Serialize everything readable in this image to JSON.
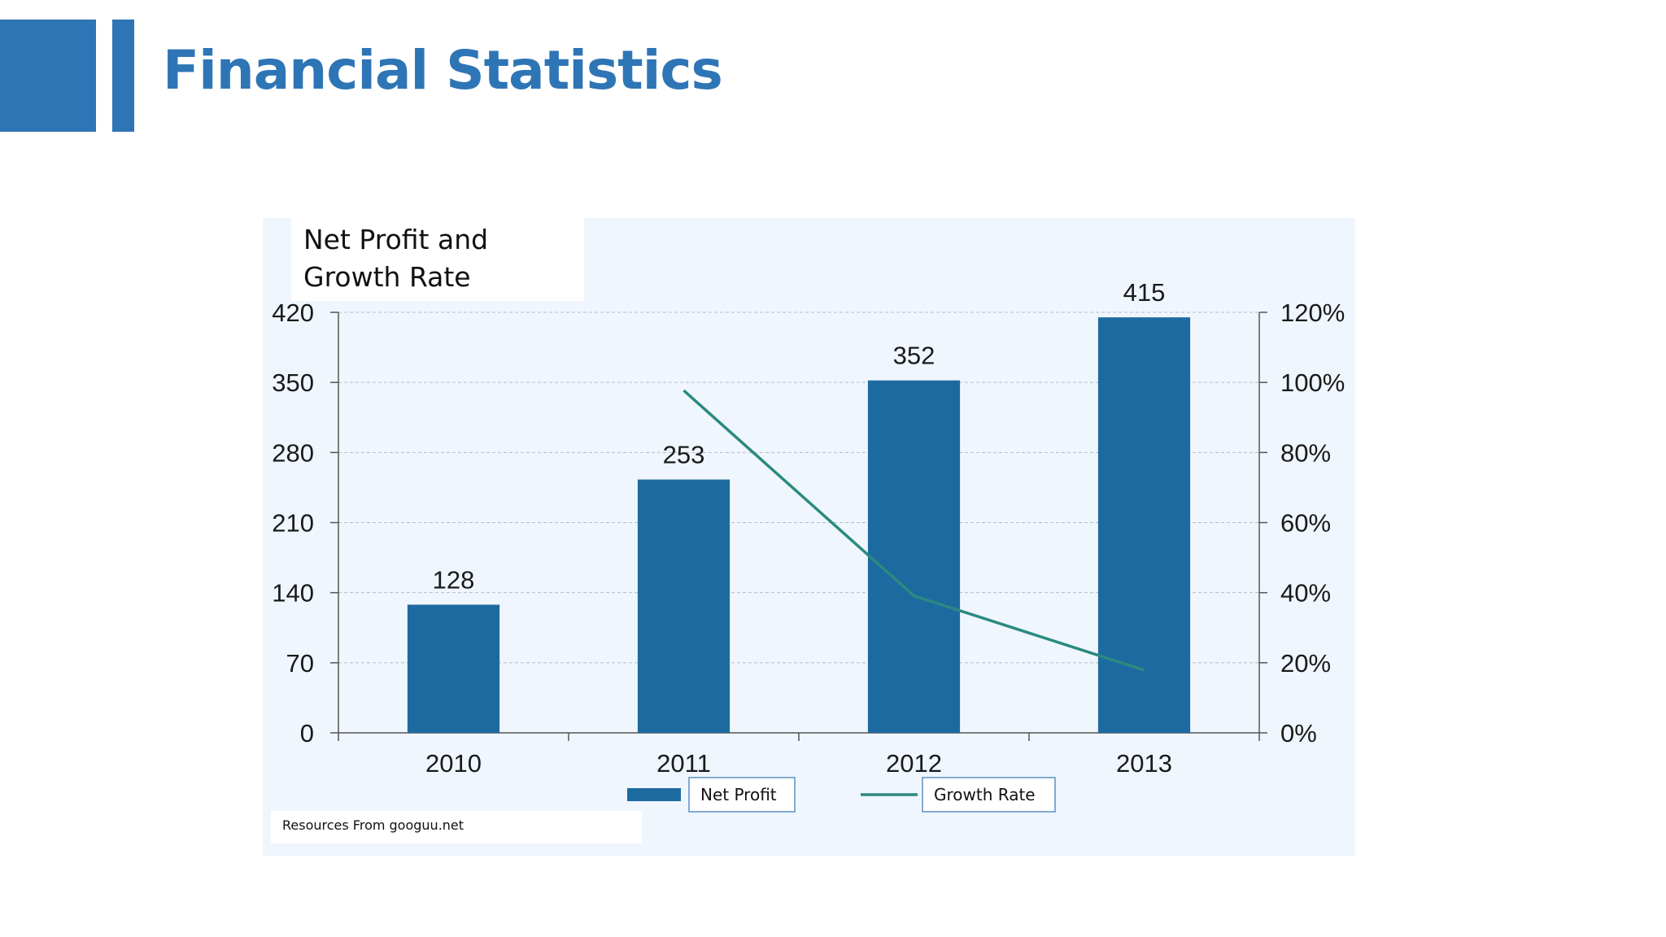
{
  "slide": {
    "title": "Financial Statistics",
    "accent_color": "#2e75b6"
  },
  "chart_data": {
    "type": "bar",
    "title": "Net Profit and Growth Rate",
    "categories": [
      "2010",
      "2011",
      "2012",
      "2013"
    ],
    "series": [
      {
        "name": "Net Profit",
        "type": "bar",
        "axis": "left",
        "values": [
          128,
          253,
          352,
          415
        ],
        "labels": [
          "128",
          "253",
          "352",
          "415"
        ],
        "color": "#1d6aa0"
      },
      {
        "name": "Growth Rate",
        "type": "line",
        "axis": "right",
        "values": [
          null,
          97.7,
          39.1,
          17.9
        ],
        "color": "#2a8a80"
      }
    ],
    "y_left": {
      "min": 0,
      "max": 420,
      "ticks": [
        "0",
        "70",
        "140",
        "210",
        "280",
        "350",
        "420"
      ]
    },
    "y_right": {
      "min": 0,
      "max": 120,
      "ticks": [
        "0%",
        "20%",
        "40%",
        "60%",
        "80%",
        "100%",
        "120%"
      ]
    },
    "grid": true,
    "legend": "bottom",
    "source": "Resources From googuu.net"
  }
}
